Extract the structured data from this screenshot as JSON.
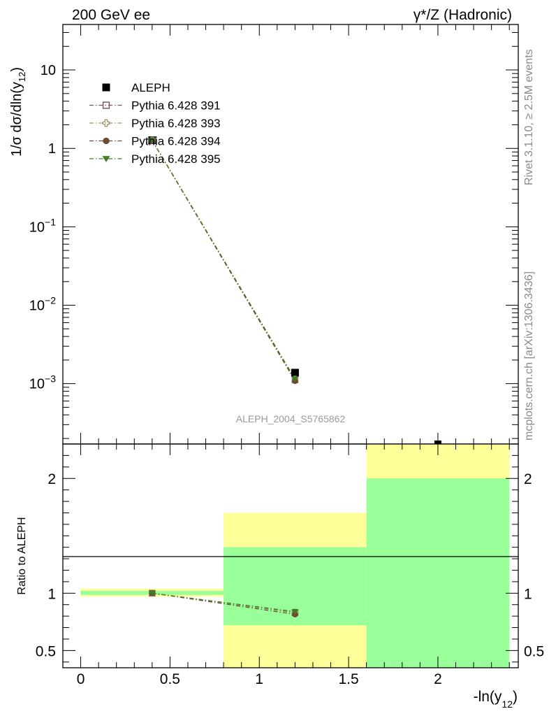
{
  "header": {
    "left": "200 GeV ee",
    "right": "γ*/Z (Hadronic)"
  },
  "side_labels": {
    "top": "Rivet 3.1.10, ≥ 2.5M events",
    "bottom": "mcplots.cern.ch [arXiv:1306.3436]"
  },
  "watermark": "ALEPH_2004_S5765862",
  "colors": {
    "yellow_band": "#ffff99",
    "green_band": "#99ff99",
    "data": "#000000",
    "p391": "#7f4f5f",
    "p393": "#9c9a6e",
    "p394": "#6b4a2e",
    "p395": "#3f7f1f"
  },
  "chart_data": [
    {
      "type": "scatter",
      "panel": "main",
      "ylabel": "1/σ dσ/dln(y12)",
      "yscale": "log",
      "xlim": [
        -0.1,
        2.45
      ],
      "ylim": [
        0.00017,
        38
      ],
      "yticks": [
        {
          "value": 0.001,
          "base": "10",
          "exp": "−3"
        },
        {
          "value": 0.01,
          "base": "10",
          "exp": "−2"
        },
        {
          "value": 0.1,
          "base": "10",
          "exp": "−1"
        },
        {
          "value": 1,
          "base": "1",
          "exp": ""
        },
        {
          "value": 10,
          "base": "10",
          "exp": ""
        }
      ],
      "legend_position": "top-left",
      "series": [
        {
          "name": "ALEPH",
          "marker": "square-filled",
          "x": [
            0.4,
            1.2,
            2.0
          ],
          "y": [
            1.27,
            0.00138,
            0.00015
          ]
        },
        {
          "name": "Pythia 6.428 391",
          "marker": "square-open",
          "x": [
            0.4,
            1.2
          ],
          "y": [
            1.27,
            0.00112
          ]
        },
        {
          "name": "Pythia 6.428 393",
          "marker": "cross-open",
          "x": [
            0.4,
            1.2
          ],
          "y": [
            1.27,
            0.00114
          ]
        },
        {
          "name": "Pythia 6.428 394",
          "marker": "circle-filled",
          "x": [
            0.4,
            1.2
          ],
          "y": [
            1.26,
            0.00108
          ]
        },
        {
          "name": "Pythia 6.428 395",
          "marker": "triangle-down-filled",
          "x": [
            0.4,
            1.2
          ],
          "y": [
            1.27,
            0.00115
          ]
        }
      ]
    },
    {
      "type": "scatter",
      "panel": "ratio",
      "ylabel": "Ratio to ALEPH",
      "xlabel": "-ln(y12)",
      "xlim": [
        -0.1,
        2.45
      ],
      "ylim": [
        0.35,
        2.3
      ],
      "xticks": [
        {
          "value": 0,
          "label": "0"
        },
        {
          "value": 0.5,
          "label": "0.5"
        },
        {
          "value": 1,
          "label": "1"
        },
        {
          "value": 1.5,
          "label": "1.5"
        },
        {
          "value": 2,
          "label": "2"
        }
      ],
      "yticks": [
        {
          "value": 0.5,
          "label": "0.5"
        },
        {
          "value": 1,
          "label": "1"
        },
        {
          "value": 2,
          "label": "2"
        }
      ],
      "bands": [
        {
          "x0": 0.0,
          "x1": 0.8,
          "yellow": [
            0.97,
            1.04
          ],
          "green": [
            0.985,
            1.02
          ]
        },
        {
          "x0": 0.8,
          "x1": 1.6,
          "yellow": [
            0.35,
            1.7
          ],
          "green": [
            0.72,
            1.4
          ]
        },
        {
          "x0": 1.6,
          "x1": 2.4,
          "yellow": [
            0.35,
            2.3
          ],
          "green": [
            0.35,
            2.0
          ]
        }
      ],
      "series": [
        {
          "name": "Pythia 6.428 391",
          "x": [
            0.4,
            1.2
          ],
          "y": [
            1.0,
            0.83
          ]
        },
        {
          "name": "Pythia 6.428 393",
          "x": [
            0.4,
            1.2
          ],
          "y": [
            1.0,
            0.835
          ]
        },
        {
          "name": "Pythia 6.428 394",
          "x": [
            0.4,
            1.2
          ],
          "y": [
            1.0,
            0.815
          ]
        },
        {
          "name": "Pythia 6.428 395",
          "x": [
            0.4,
            1.2
          ],
          "y": [
            1.0,
            0.84
          ]
        }
      ]
    }
  ]
}
